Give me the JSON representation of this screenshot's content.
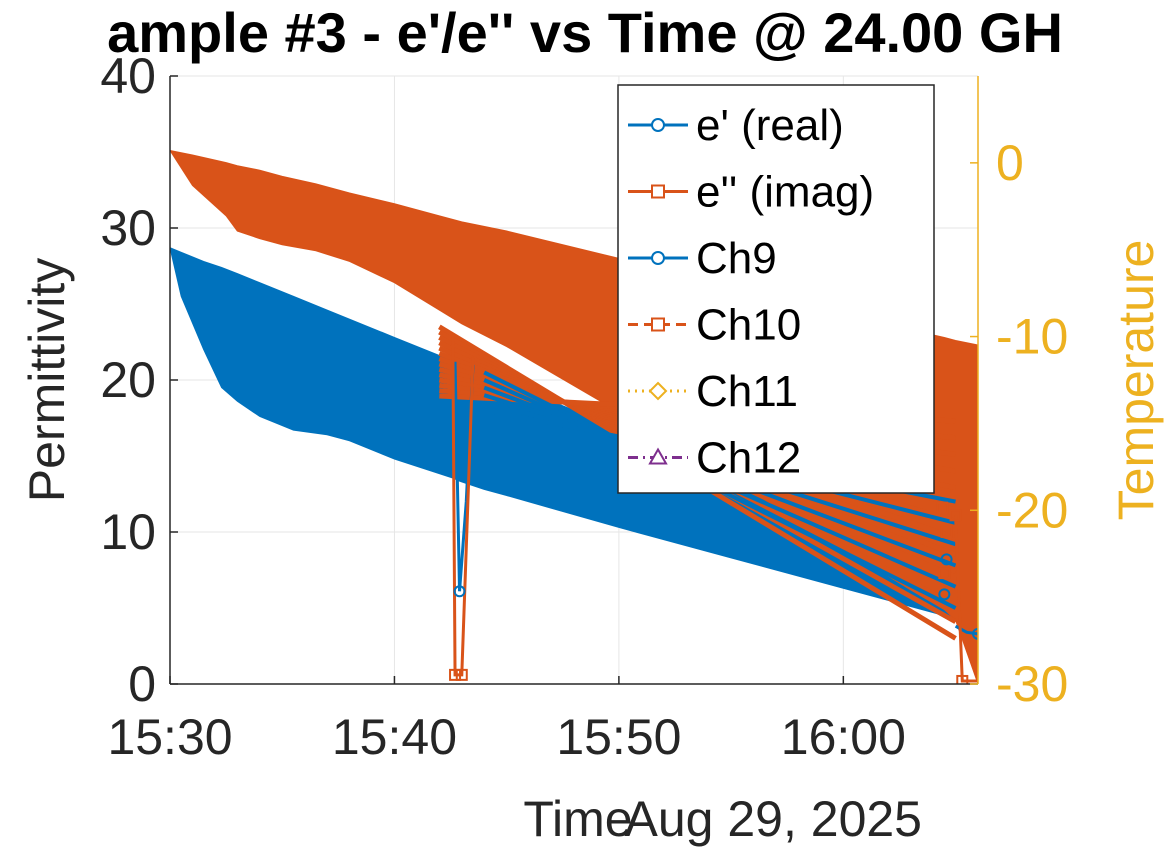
{
  "chart_data": {
    "type": "line",
    "title": "ample #3 - e'/e'' vs Time @ 24.00 GH",
    "xlabel": "Time",
    "x_secondary_label": "Aug 29, 2025",
    "ylabel": "Permittivity",
    "y2label": "Temperature",
    "xlim": [
      "15:30",
      "16:06"
    ],
    "ylim": [
      0,
      40
    ],
    "y2lim": [
      -30,
      5
    ],
    "x_ticks": [
      "15:30",
      "15:40",
      "15:50",
      "16:00"
    ],
    "y_ticks": [
      "0",
      "10",
      "20",
      "30",
      "40"
    ],
    "y2_ticks": [
      "0",
      "-10",
      "-20",
      "-30"
    ],
    "grid": true,
    "legend_placement": "top-right",
    "series": [
      {
        "name": "e' (real)",
        "axis": "left",
        "color": "#0072BD",
        "marker": "circle",
        "line": "solid",
        "time": [
          "15:30",
          "15:30.5",
          "15:31.5",
          "15:32.3",
          "15:33",
          "15:34",
          "15:35.5",
          "15:37",
          "15:38",
          "15:40",
          "15:42.7",
          "15:42.8",
          "15:43",
          "15:43.2",
          "15:44",
          "15:45",
          "15:50",
          "15:55",
          "16:00",
          "16:03",
          "16:04.5",
          "16:05",
          "16:06"
        ],
        "upper": [
          28.7,
          28.4,
          27.8,
          27.4,
          27.0,
          26.4,
          25.5,
          24.6,
          24.0,
          22.8,
          21.2,
          21.1,
          21.0,
          20.9,
          20.4,
          19.8,
          16.8,
          13.8,
          10.8,
          9.0,
          8.1,
          7.8,
          7.2
        ],
        "lower": [
          28.7,
          25.5,
          22.0,
          19.5,
          18.6,
          17.6,
          16.7,
          16.4,
          16.0,
          14.8,
          13.5,
          13.4,
          13.3,
          13.2,
          12.8,
          12.4,
          10.3,
          8.3,
          6.3,
          5.1,
          4.5,
          4.3,
          4.1
        ],
        "dip": [
          {
            "time": "15:42.7",
            "value": 21.2
          },
          {
            "time": "15:42.9",
            "value": 6.1
          },
          {
            "time": "15:43.2",
            "value": 12.0
          },
          {
            "time": "15:43.5",
            "value": 21.0
          }
        ],
        "tail": [
          {
            "time": "16:05",
            "value": 3.8
          },
          {
            "time": "16:05.5",
            "value": 3.4
          },
          {
            "time": "16:06",
            "value": 3.3
          }
        ]
      },
      {
        "name": "e'' (imag)",
        "axis": "left",
        "color": "#D95319",
        "marker": "square",
        "line": "solid",
        "time": [
          "15:30",
          "15:31",
          "15:32.5",
          "15:33",
          "15:34",
          "15:35",
          "15:36.5",
          "15:38",
          "15:40",
          "15:42",
          "15:43",
          "15:45",
          "15:50",
          "15:55",
          "16:00",
          "16:03",
          "16:04.5",
          "16:05",
          "16:06"
        ],
        "upper": [
          35.1,
          34.8,
          34.3,
          34.1,
          33.8,
          33.4,
          32.9,
          32.3,
          31.6,
          30.8,
          30.4,
          29.8,
          28.0,
          26.2,
          24.4,
          23.3,
          22.8,
          22.6,
          22.3
        ],
        "lower": [
          35.1,
          32.8,
          30.8,
          29.8,
          29.3,
          28.9,
          28.5,
          27.8,
          26.4,
          24.6,
          23.7,
          22.2,
          17.9,
          13.5,
          8.9,
          6.2,
          4.9,
          4.2,
          0.0
        ],
        "dip": [
          {
            "time": "15:42.6",
            "value": 23.0
          },
          {
            "time": "15:42.7",
            "value": 0.6
          },
          {
            "time": "15:43.0",
            "value": 0.6
          },
          {
            "time": "15:43.5",
            "value": 21.5
          }
        ],
        "tail": [
          {
            "time": "16:05",
            "value": 11.1
          },
          {
            "time": "16:05.3",
            "value": 0.2
          },
          {
            "time": "16:06",
            "value": 0.2
          }
        ]
      },
      {
        "name": "Ch9",
        "axis": "right",
        "color": "#0072BD",
        "marker": "circle",
        "line": "solid"
      },
      {
        "name": "Ch10",
        "axis": "right",
        "color": "#D95319",
        "marker": "square",
        "line": "dashed"
      },
      {
        "name": "Ch11",
        "axis": "right",
        "color": "#EDB120",
        "marker": "diamond",
        "line": "dotted"
      },
      {
        "name": "Ch12",
        "axis": "right",
        "color": "#7E2F8E",
        "marker": "triangle",
        "line": "dashdot"
      }
    ]
  }
}
